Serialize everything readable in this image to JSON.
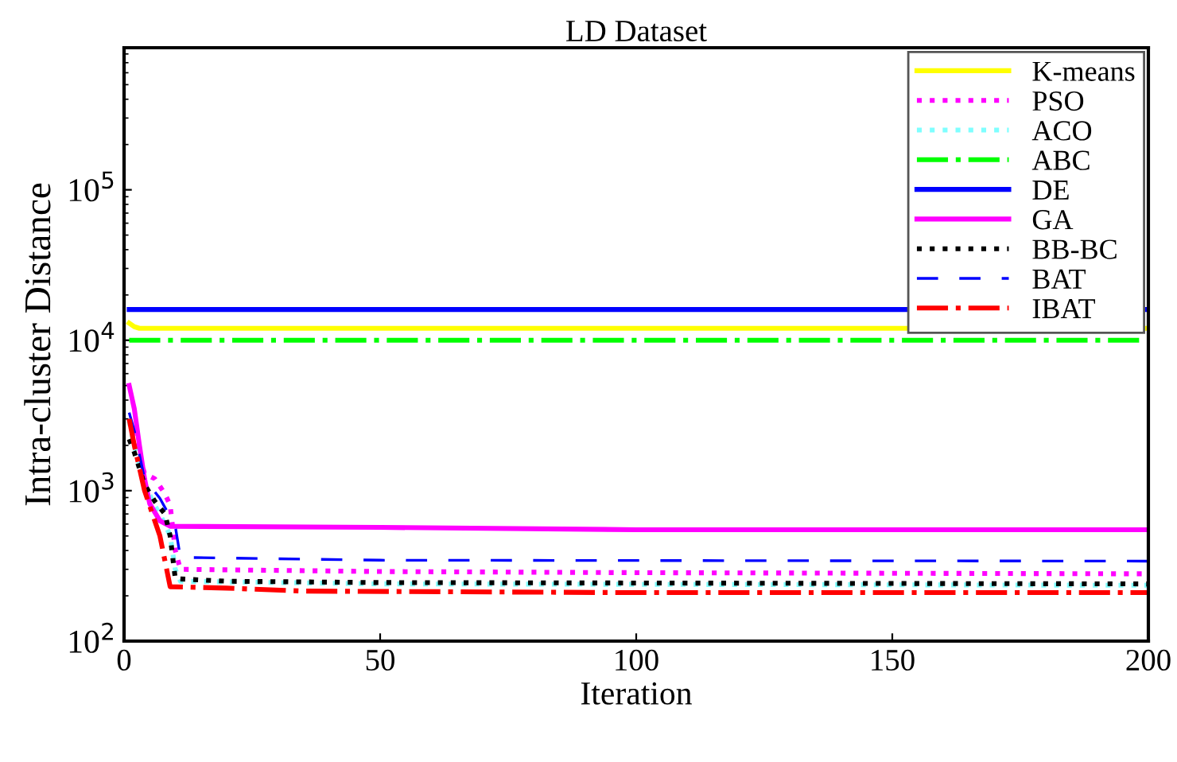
{
  "chart_data": {
    "type": "line",
    "title": "LD Dataset",
    "xlabel": "Iteration",
    "ylabel": "Intra-cluster Distance",
    "log": "y",
    "xlim": [
      0,
      200
    ],
    "xticks": [
      0,
      50,
      100,
      150,
      200
    ],
    "ylim": [
      100,
      880000
    ],
    "yticks": [
      {
        "value": 100,
        "label": "10$^{2}$"
      },
      {
        "value": 1000,
        "label": "10$^{3}$"
      },
      {
        "value": 10000,
        "label": "10$^{4}$"
      },
      {
        "value": 100000,
        "label": "10$^{5}$"
      }
    ],
    "grid": false,
    "legend": "top right",
    "series": [
      {
        "name": "K-means",
        "color": "#ffff00",
        "line_style": "solid",
        "x": [
          1,
          2,
          3,
          5,
          200
        ],
        "values": [
          13000,
          12300,
          12000,
          12000,
          12000
        ]
      },
      {
        "name": "PSO",
        "color": "#ff00ff",
        "line_style": "dotted",
        "x": [
          1,
          2,
          4,
          6,
          8,
          9,
          10,
          11,
          50,
          100,
          200
        ],
        "values": [
          3000,
          2200,
          1300,
          1200,
          950,
          800,
          400,
          300,
          290,
          285,
          280
        ]
      },
      {
        "name": "ACO",
        "color": "#7fffff",
        "line_style": "dotted",
        "x": [
          1,
          2,
          4,
          6,
          8,
          9,
          10,
          11,
          50,
          200
        ],
        "values": [
          2900,
          2000,
          1100,
          800,
          600,
          500,
          300,
          250,
          240,
          235
        ]
      },
      {
        "name": "ABC",
        "color": "#00ff00",
        "line_style": "dashdot",
        "x": [
          1,
          200
        ],
        "values": [
          10000,
          10000
        ]
      },
      {
        "name": "DE",
        "color": "#0000ff",
        "line_style": "solid",
        "x": [
          1,
          200
        ],
        "values": [
          16000,
          16000
        ]
      },
      {
        "name": "GA",
        "color": "#ff00ff",
        "line_style": "solid",
        "x": [
          1,
          2,
          3,
          4,
          5,
          7,
          9,
          50,
          100,
          200
        ],
        "values": [
          5000,
          3500,
          2000,
          1200,
          820,
          630,
          580,
          570,
          550,
          550
        ]
      },
      {
        "name": "BB-BC",
        "color": "#000000",
        "line_style": "dotted",
        "x": [
          1,
          2,
          4,
          6,
          8,
          9,
          10,
          20,
          50,
          200
        ],
        "values": [
          2200,
          1800,
          1100,
          850,
          700,
          500,
          260,
          250,
          245,
          240
        ]
      },
      {
        "name": "BAT",
        "color": "#0000ff",
        "line_style": "dashed",
        "x": [
          1,
          2,
          4,
          7,
          10,
          11,
          50,
          200
        ],
        "values": [
          3300,
          2500,
          1200,
          890,
          580,
          360,
          345,
          340
        ]
      },
      {
        "name": "IBAT",
        "color": "#ff0000",
        "line_style": "dashdot",
        "x": [
          1,
          2,
          4,
          7,
          9,
          20,
          35,
          100,
          200
        ],
        "values": [
          3000,
          2000,
          1000,
          500,
          230,
          225,
          215,
          210,
          210
        ]
      }
    ]
  }
}
